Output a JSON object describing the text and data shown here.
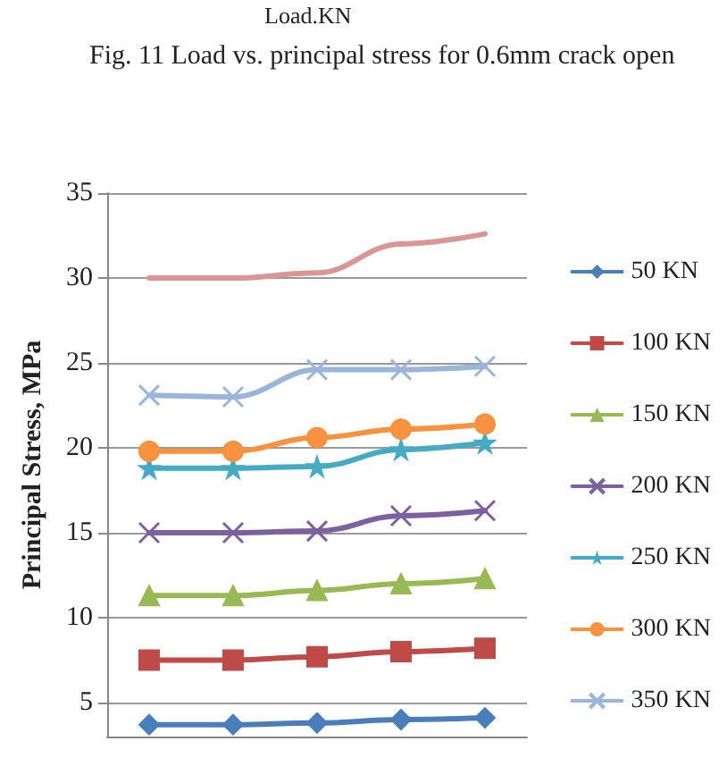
{
  "chart_data": {
    "type": "line",
    "annotations": [
      "Load.KN",
      "Fig. 11 Load vs. principal stress for 0.6mm crack open"
    ],
    "ylabel": "Principal Stress, MPa",
    "categories": [
      null,
      null,
      null,
      null,
      null
    ],
    "ylim": [
      3,
      35
    ],
    "yticks": [
      5,
      10,
      15,
      20,
      25,
      30,
      35
    ],
    "grid": "y",
    "legend": "right",
    "tick_labels": "y",
    "series": [
      {
        "name": "50 KN",
        "color": "#4a7ebb",
        "marker": "diamond",
        "values": [
          3.7,
          3.7,
          3.8,
          4.0,
          4.1
        ]
      },
      {
        "name": "100 KN",
        "color": "#be4b48",
        "marker": "square",
        "values": [
          7.5,
          7.5,
          7.7,
          8.0,
          8.2
        ]
      },
      {
        "name": "150 KN",
        "color": "#98b954",
        "marker": "triangle",
        "values": [
          11.3,
          11.3,
          11.6,
          12.0,
          12.3
        ]
      },
      {
        "name": "200 KN",
        "color": "#7d60a0",
        "marker": "cross",
        "values": [
          15.0,
          15.0,
          15.1,
          16.0,
          16.3
        ]
      },
      {
        "name": "250 KN",
        "color": "#46aac5",
        "marker": "star",
        "values": [
          18.8,
          18.8,
          18.9,
          19.9,
          20.3
        ]
      },
      {
        "name": "300 KN",
        "color": "#f69240",
        "marker": "circle",
        "values": [
          19.8,
          19.8,
          20.6,
          21.1,
          21.4
        ]
      },
      {
        "name": "350 KN",
        "color": "#9bb5da",
        "marker": "cross",
        "values": [
          23.1,
          23.0,
          24.6,
          24.6,
          24.8
        ]
      },
      {
        "color": "#d99694",
        "marker": "none",
        "values": [
          30.0,
          30.0,
          30.3,
          32.0,
          32.6
        ]
      }
    ]
  }
}
